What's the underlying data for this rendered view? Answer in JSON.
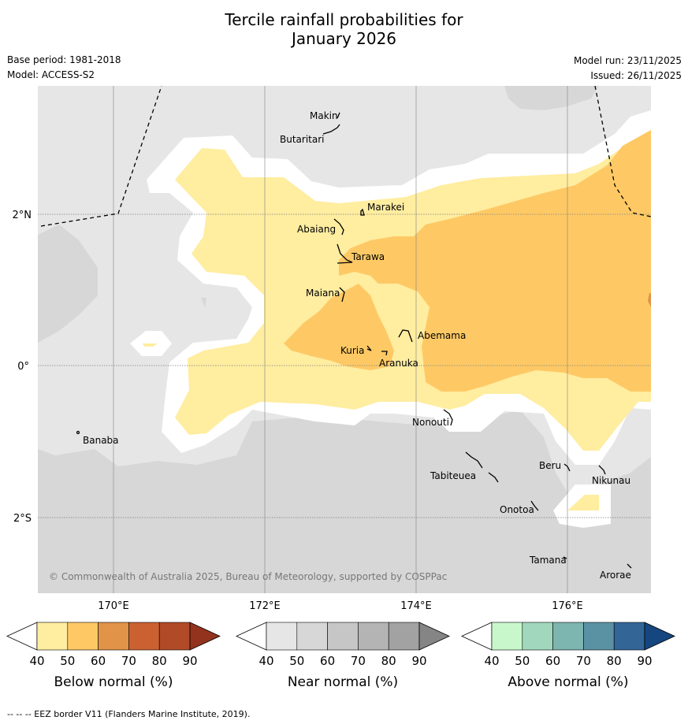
{
  "title_line1": "Tercile rainfall probabilities for",
  "title_line2": "January 2026",
  "base_period": "Base period: 1981-2018",
  "model": "Model: ACCESS-S2",
  "model_run": "Model run: 23/11/2025",
  "issued": "Issued: 26/11/2025",
  "copyright": "© Commonwealth of Australia 2025, Bureau of Meteorology, supported by COSPPac",
  "footer": "--  --  -- EEZ border V11 (Flanders Marine Institute, 2019).",
  "lat_ticks": [
    "2°N",
    "0°",
    "2°S"
  ],
  "lon_ticks": [
    "170°E",
    "172°E",
    "174°E",
    "176°E"
  ],
  "islands": {
    "makin": "Makin",
    "butaritari": "Butaritari",
    "marakei": "Marakei",
    "abaiang": "Abaiang",
    "tarawa": "Tarawa",
    "maiana": "Maiana",
    "abemama": "Abemama",
    "kuria": "Kuria",
    "aranuka": "Aranuka",
    "nonouti": "Nonouti",
    "banaba": "Banaba",
    "tabiteuea": "Tabiteuea",
    "beru": "Beru",
    "nikunau": "Nikunau",
    "onotoa": "Onotoa",
    "tamana": "Tamana",
    "arorae": "Arorae"
  },
  "colorbars": {
    "below": {
      "label": "Below normal (%)",
      "ticks": [
        "40",
        "50",
        "60",
        "70",
        "80",
        "90"
      ],
      "colors": [
        "#ffeda0",
        "#fec965",
        "#e19347",
        "#cb6131",
        "#b14a26",
        "#93331d"
      ]
    },
    "near": {
      "label": "Near normal (%)",
      "ticks": [
        "40",
        "50",
        "60",
        "70",
        "80",
        "90"
      ],
      "colors": [
        "#e6e6e6",
        "#d7d7d7",
        "#c6c6c6",
        "#b4b4b4",
        "#a2a2a2",
        "#858585"
      ]
    },
    "above": {
      "label": "Above normal (%)",
      "ticks": [
        "40",
        "50",
        "60",
        "70",
        "80",
        "90"
      ],
      "colors": [
        "#c9f7cc",
        "#a1d8bd",
        "#7db5b0",
        "#5b92a3",
        "#336597",
        "#164680"
      ]
    }
  },
  "map_colors": {
    "near_40": "#e6e6e6",
    "near_50": "#d7d7d7",
    "below_40": "#ffeda0",
    "below_50": "#fec965",
    "no_signal": "#ffffff"
  }
}
